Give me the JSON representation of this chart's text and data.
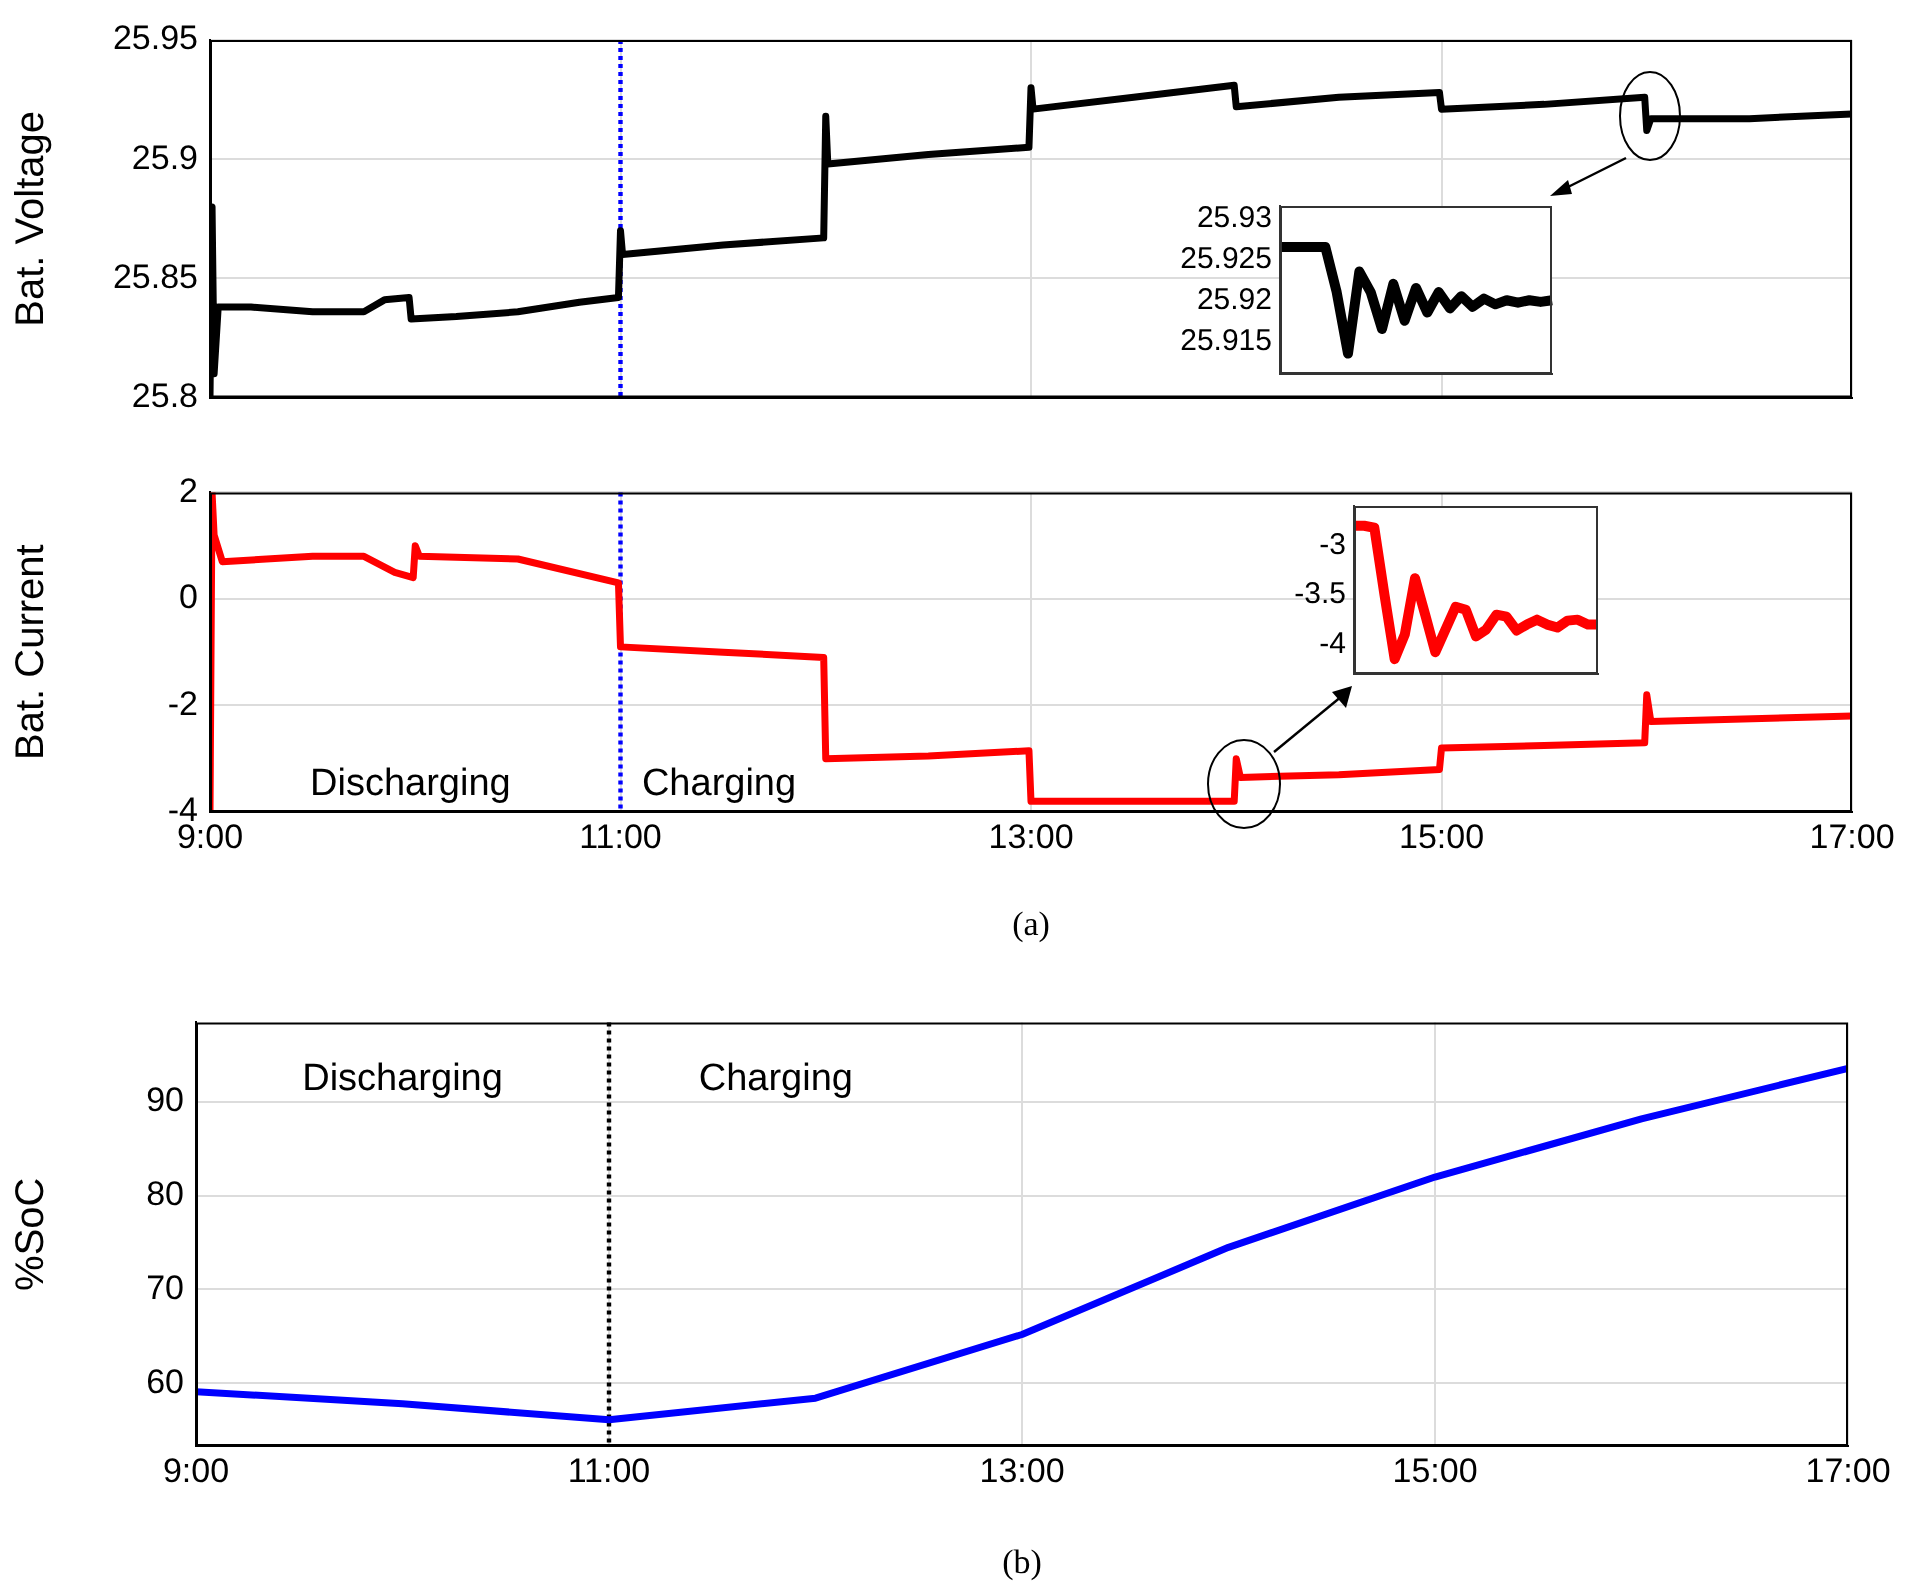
{
  "chart_data": [
    {
      "type": "line",
      "ylabel": "Bat. Voltage",
      "xlim": [
        9,
        17
      ],
      "ylim": [
        25.8,
        25.95
      ],
      "xticks": [
        {
          "value": 9,
          "label": null
        },
        {
          "value": 11,
          "label": null
        },
        {
          "value": 13,
          "label": null
        },
        {
          "value": 15,
          "label": null
        },
        {
          "value": 17,
          "label": null
        }
      ],
      "yticks": [
        25.8,
        25.85,
        25.9,
        25.95
      ],
      "grid": true,
      "tick_labels": "y",
      "marker": "none",
      "ref_lines": [
        {
          "axis": "x",
          "value": 11,
          "color": "#0000ff",
          "line_style": "dotted"
        }
      ],
      "series": [
        {
          "color": "#000000",
          "x": [
            9,
            9.01,
            9.02,
            9.04,
            9.2,
            9.5,
            9.75,
            9.85,
            9.97,
            9.98,
            10.2,
            10.5,
            10.8,
            10.99,
            11,
            11.01,
            11.5,
            11.99,
            12,
            12.01,
            12.5,
            12.99,
            13,
            13.01,
            13.5,
            13.99,
            14,
            14.5,
            14.99,
            15,
            15.5,
            15.99,
            16,
            16.02,
            16.5,
            17
          ],
          "values": [
            25.8,
            25.88,
            25.81,
            25.838,
            25.838,
            25.836,
            25.836,
            25.841,
            25.842,
            25.833,
            25.834,
            25.836,
            25.84,
            25.842,
            25.87,
            25.86,
            25.864,
            25.867,
            25.918,
            25.898,
            25.902,
            25.905,
            25.93,
            25.921,
            25.926,
            25.931,
            25.922,
            25.926,
            25.928,
            25.921,
            25.923,
            25.926,
            25.912,
            25.917,
            25.917,
            25.919
          ]
        }
      ]
    },
    {
      "type": "line",
      "categories": [
        null,
        null,
        null,
        null,
        null,
        null,
        null,
        null,
        null,
        null,
        null,
        null,
        null,
        null,
        null,
        null,
        null,
        null,
        null,
        null,
        null,
        null,
        null,
        null,
        null
      ],
      "ylim": [
        25.911,
        25.9315
      ],
      "yticks": [
        25.915,
        25.92,
        25.925,
        25.93
      ],
      "tick_labels": "y",
      "marker": "none",
      "series": [
        {
          "color": "#000000",
          "values": [
            25.9265,
            25.9265,
            25.9265,
            25.9265,
            25.9265,
            25.921,
            25.9135,
            25.9235,
            25.921,
            25.9165,
            25.922,
            25.9175,
            25.9215,
            25.9185,
            25.921,
            25.919,
            25.9205,
            25.9192,
            25.9202,
            25.9195,
            25.92,
            25.9197,
            25.92,
            25.9198,
            25.92
          ]
        }
      ]
    },
    {
      "type": "line",
      "ylabel": "Bat. Current",
      "xlim": [
        9,
        17
      ],
      "ylim": [
        -4,
        2
      ],
      "xticks": [
        {
          "value": 9,
          "label": "9:00"
        },
        {
          "value": 11,
          "label": "11:00"
        },
        {
          "value": 13,
          "label": "13:00"
        },
        {
          "value": 15,
          "label": "15:00"
        },
        {
          "value": 17,
          "label": "17:00"
        }
      ],
      "yticks": [
        -4,
        -2,
        0,
        2
      ],
      "grid": true,
      "marker": "none",
      "ref_lines": [
        {
          "axis": "x",
          "value": 11,
          "color": "#0000ff",
          "line_style": "dotted"
        }
      ],
      "annotations": [
        "Discharging",
        "Charging",
        "(a)"
      ],
      "series": [
        {
          "color": "#ff0000",
          "x": [
            9,
            9.01,
            9.02,
            9.06,
            9.5,
            9.75,
            9.9,
            9.99,
            10,
            10.02,
            10.5,
            10.99,
            11,
            11.5,
            11.99,
            12,
            12.5,
            12.99,
            13,
            13.99,
            14,
            14.02,
            14.5,
            14.99,
            15,
            15.5,
            15.99,
            16,
            16.02,
            17
          ],
          "values": [
            -4,
            2,
            1.2,
            0.7,
            0.8,
            0.8,
            0.5,
            0.4,
            1,
            0.8,
            0.75,
            0.3,
            -0.9,
            -1,
            -1.1,
            -3,
            -2.95,
            -2.85,
            -3.8,
            -3.8,
            -3,
            -3.35,
            -3.3,
            -3.2,
            -2.8,
            -2.75,
            -2.7,
            -1.8,
            -2.3,
            -2.2
          ]
        }
      ]
    },
    {
      "type": "line",
      "categories": [
        null,
        null,
        null,
        null,
        null,
        null,
        null,
        null,
        null,
        null,
        null,
        null,
        null,
        null,
        null,
        null,
        null,
        null,
        null,
        null,
        null,
        null,
        null,
        null,
        null
      ],
      "ylim": [
        -4.3,
        -2.6
      ],
      "yticks": [
        -4,
        -3.5,
        -3
      ],
      "tick_labels": "y",
      "marker": "none",
      "series": [
        {
          "color": "#ff0000",
          "values": [
            -2.8,
            -2.8,
            -2.82,
            -3.5,
            -4.15,
            -3.9,
            -3.33,
            -3.7,
            -4.08,
            -3.85,
            -3.62,
            -3.65,
            -3.92,
            -3.85,
            -3.7,
            -3.72,
            -3.86,
            -3.8,
            -3.75,
            -3.8,
            -3.83,
            -3.76,
            -3.75,
            -3.8,
            -3.8
          ]
        }
      ]
    },
    {
      "type": "line",
      "ylabel": "%SoC",
      "xlim": [
        9,
        17
      ],
      "ylim": [
        53.3,
        98.5
      ],
      "xticks": [
        {
          "value": 9,
          "label": "9:00"
        },
        {
          "value": 11,
          "label": "11:00"
        },
        {
          "value": 13,
          "label": "13:00"
        },
        {
          "value": 15,
          "label": "15:00"
        },
        {
          "value": 17,
          "label": "17:00"
        }
      ],
      "yticks": [
        60,
        70,
        80,
        90
      ],
      "grid": true,
      "marker": "none",
      "ref_lines": [
        {
          "axis": "x",
          "value": 11,
          "color": "#000000",
          "line_style": "dotted"
        }
      ],
      "annotations": [
        "Discharging",
        "Charging",
        "(b)"
      ],
      "series": [
        {
          "color": "#0000ff",
          "x": [
            9,
            10,
            11,
            12,
            13,
            14,
            15,
            16,
            17
          ],
          "values": [
            59.1,
            57.8,
            56.1,
            58.4,
            65.2,
            74.5,
            82,
            88.2,
            93.6
          ]
        }
      ]
    }
  ]
}
